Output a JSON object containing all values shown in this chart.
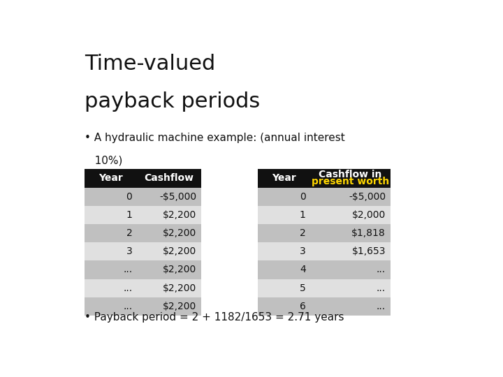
{
  "title_line1": "Time-valued",
  "title_line2": "payback periods",
  "bullet1_line1": "• A hydraulic machine example: (annual interest",
  "bullet1_line2": "   10%)",
  "bullet2": "• Payback period = 2 + 1182/1653 = 2.71 years",
  "table1_headers": [
    "Year",
    "Cashflow"
  ],
  "table1_rows": [
    [
      "0",
      "-$5,000"
    ],
    [
      "1",
      "$2,200"
    ],
    [
      "2",
      "$2,200"
    ],
    [
      "3",
      "$2,200"
    ],
    [
      "...",
      "$2,200"
    ],
    [
      "...",
      "$2,200"
    ],
    [
      "...",
      "$2,200"
    ]
  ],
  "table2_header1": "Year",
  "table2_header2_line1": "Cashflow in",
  "table2_header2_line2": "present worth",
  "table2_header2_color": "#FFD700",
  "table2_rows": [
    [
      "0",
      "-$5,000"
    ],
    [
      "1",
      "$2,000"
    ],
    [
      "2",
      "$1,818"
    ],
    [
      "3",
      "$1,653"
    ],
    [
      "4",
      "..."
    ],
    [
      "5",
      "..."
    ],
    [
      "6",
      "..."
    ]
  ],
  "header_bg": "#111111",
  "header_fg": "#ffffff",
  "row_bg_odd": "#c0c0c0",
  "row_bg_even": "#e0e0e0",
  "bg_color": "#ffffff",
  "title_fontsize": 22,
  "body_fontsize": 11,
  "table_fontsize": 10
}
